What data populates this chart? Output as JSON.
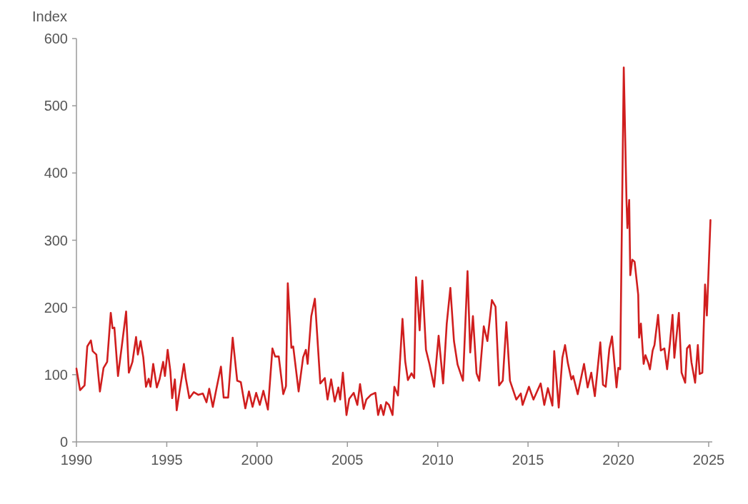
{
  "chart_data": {
    "type": "line",
    "ylabel": "Index",
    "xlim": [
      1990,
      2025.2
    ],
    "xticks": [
      1990,
      1995,
      2000,
      2005,
      2010,
      2015,
      2020,
      2025
    ],
    "ylim": [
      0,
      600
    ],
    "yticks": [
      0,
      100,
      200,
      300,
      400,
      500,
      600
    ],
    "grid": false,
    "marker": "none",
    "line_style": "solid",
    "series": [
      {
        "color": "#d01e1e",
        "x": [
          1990.0,
          1990.2,
          1990.45,
          1990.6,
          1990.8,
          1990.9,
          1991.1,
          1991.3,
          1991.5,
          1991.7,
          1991.9,
          1992.0,
          1992.1,
          1992.3,
          1992.5,
          1992.75,
          1992.9,
          1993.1,
          1993.3,
          1993.4,
          1993.55,
          1993.7,
          1993.85,
          1994.0,
          1994.1,
          1994.25,
          1994.45,
          1994.6,
          1994.8,
          1994.9,
          1995.05,
          1995.2,
          1995.3,
          1995.45,
          1995.55,
          1995.7,
          1995.95,
          1996.05,
          1996.25,
          1996.5,
          1996.75,
          1997.0,
          1997.2,
          1997.35,
          1997.55,
          1997.75,
          1998.0,
          1998.15,
          1998.4,
          1998.65,
          1998.9,
          1999.1,
          1999.35,
          1999.55,
          1999.75,
          1999.95,
          2000.15,
          2000.35,
          2000.6,
          2000.85,
          2001.0,
          2001.2,
          2001.45,
          2001.6,
          2001.7,
          2001.9,
          2002.0,
          2002.3,
          2002.55,
          2002.7,
          2002.8,
          2003.0,
          2003.2,
          2003.5,
          2003.75,
          2003.9,
          2004.1,
          2004.3,
          2004.5,
          2004.6,
          2004.75,
          2004.95,
          2005.1,
          2005.35,
          2005.55,
          2005.7,
          2005.9,
          2006.05,
          2006.3,
          2006.55,
          2006.7,
          2006.85,
          2007.0,
          2007.15,
          2007.3,
          2007.5,
          2007.6,
          2007.8,
          2008.05,
          2008.2,
          2008.35,
          2008.55,
          2008.7,
          2008.8,
          2009.0,
          2009.15,
          2009.35,
          2009.55,
          2009.8,
          2010.05,
          2010.3,
          2010.5,
          2010.7,
          2010.9,
          2011.1,
          2011.4,
          2011.65,
          2011.8,
          2011.95,
          2012.15,
          2012.3,
          2012.55,
          2012.75,
          2013.0,
          2013.2,
          2013.4,
          2013.6,
          2013.8,
          2014.0,
          2014.35,
          2014.6,
          2014.7,
          2015.05,
          2015.3,
          2015.7,
          2015.9,
          2016.1,
          2016.35,
          2016.45,
          2016.7,
          2016.9,
          2017.05,
          2017.2,
          2017.4,
          2017.5,
          2017.75,
          2018.1,
          2018.3,
          2018.5,
          2018.7,
          2019.0,
          2019.15,
          2019.3,
          2019.5,
          2019.65,
          2019.9,
          2020.0,
          2020.1,
          2020.3,
          2020.45,
          2020.5,
          2020.6,
          2020.66,
          2020.77,
          2020.9,
          2021.1,
          2021.15,
          2021.25,
          2021.4,
          2021.5,
          2021.65,
          2021.75,
          2021.9,
          2022.0,
          2022.2,
          2022.35,
          2022.55,
          2022.7,
          2022.85,
          2023.0,
          2023.1,
          2023.35,
          2023.5,
          2023.7,
          2023.8,
          2023.95,
          2024.05,
          2024.25,
          2024.4,
          2024.5,
          2024.65,
          2024.8,
          2024.9,
          2025.1
        ],
        "values": [
          109,
          77,
          84,
          142,
          151,
          135,
          130,
          75,
          110,
          119,
          192,
          169,
          170,
          98,
          140,
          194,
          103,
          119,
          156,
          130,
          150,
          126,
          82,
          94,
          82,
          116,
          81,
          93,
          119,
          98,
          137,
          105,
          65,
          93,
          47,
          74,
          116,
          95,
          65,
          74,
          70,
          72,
          59,
          79,
          52,
          79,
          112,
          66,
          66,
          155,
          91,
          89,
          50,
          75,
          52,
          73,
          55,
          76,
          48,
          139,
          127,
          127,
          71,
          83,
          236,
          140,
          142,
          75,
          126,
          137,
          116,
          187,
          213,
          87,
          95,
          63,
          93,
          60,
          81,
          63,
          103,
          40,
          64,
          73,
          55,
          86,
          49,
          63,
          70,
          73,
          40,
          55,
          40,
          59,
          55,
          40,
          82,
          69,
          183,
          120,
          92,
          102,
          95,
          245,
          166,
          240,
          137,
          115,
          82,
          158,
          87,
          176,
          229,
          150,
          115,
          91,
          254,
          133,
          187,
          102,
          91,
          172,
          150,
          211,
          201,
          84,
          91,
          178,
          91,
          63,
          72,
          55,
          82,
          63,
          87,
          55,
          80,
          54,
          135,
          51,
          125,
          144,
          118,
          93,
          98,
          71,
          116,
          81,
          103,
          68,
          148,
          85,
          82,
          138,
          157,
          81,
          110,
          108,
          557,
          360,
          318,
          360,
          248,
          271,
          268,
          219,
          155,
          176,
          116,
          129,
          118,
          108,
          136,
          144,
          189,
          136,
          139,
          108,
          145,
          189,
          125,
          192,
          103,
          88,
          139,
          144,
          118,
          88,
          144,
          101,
          103,
          234,
          188,
          330
        ]
      }
    ]
  }
}
